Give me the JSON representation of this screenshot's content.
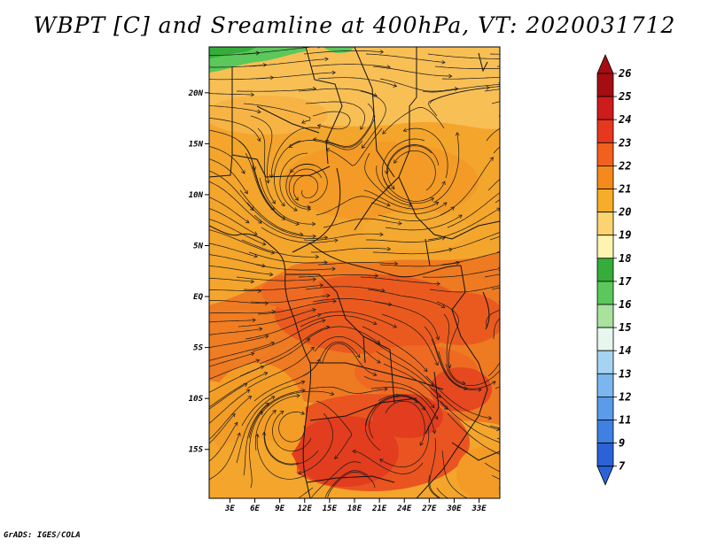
{
  "title": "WBPT [C] and Sreamline at 400hPa, VT: 2020031712",
  "credit": "GrADS: IGES/COLA",
  "lat_labels": [
    "20N",
    "15N",
    "10N",
    "5N",
    "EQ",
    "5S",
    "10S",
    "15S"
  ],
  "lat_values": [
    20,
    15,
    10,
    5,
    0,
    -5,
    -10,
    -15
  ],
  "lon_labels": [
    "3E",
    "6E",
    "9E",
    "12E",
    "15E",
    "18E",
    "21E",
    "24E",
    "27E",
    "30E",
    "33E"
  ],
  "lon_values": [
    3,
    6,
    9,
    12,
    15,
    18,
    21,
    24,
    27,
    30,
    33
  ],
  "map_extent": {
    "lon_min": 0.5,
    "lon_max": 35.5,
    "lat_min": -19.8,
    "lat_max": 24.5
  },
  "colorbar": {
    "labels": [
      "26",
      "25",
      "24",
      "23",
      "22",
      "21",
      "20",
      "19",
      "18",
      "17",
      "16",
      "15",
      "14",
      "13",
      "12",
      "11",
      "9",
      "7"
    ],
    "colors": [
      "#a50d12",
      "#cd1c1c",
      "#e8371f",
      "#f2601d",
      "#f48a1b",
      "#f7ad2a",
      "#fbd46f",
      "#fef4b0",
      "#36ad3a",
      "#5cc85b",
      "#a8e29d",
      "#e6f7ee",
      "#a7d3f3",
      "#7cb6ee",
      "#5a9bea",
      "#3f80e2",
      "#2b62d8"
    ],
    "top_color": "#a50d12",
    "bottom_color": "#2b62d8"
  }
}
